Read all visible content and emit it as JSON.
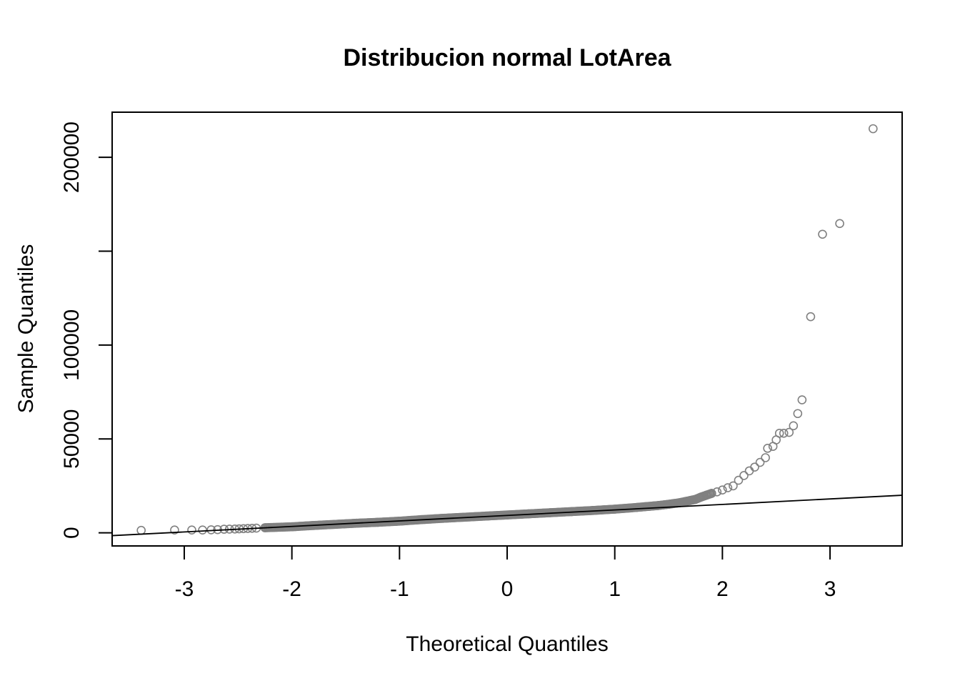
{
  "chart_data": {
    "type": "scatter",
    "title": "Distribucion normal LotArea",
    "xlabel": "Theoretical Quantiles",
    "ylabel": "Sample Quantiles",
    "xlim": [
      -3.67,
      3.67
    ],
    "ylim": [
      -7000,
      224000
    ],
    "x_ticks": [
      -3,
      -2,
      -1,
      0,
      1,
      2,
      3
    ],
    "x_tick_labels": [
      "-3",
      "-2",
      "-1",
      "0",
      "1",
      "2",
      "3"
    ],
    "y_ticks": [
      0,
      50000,
      100000,
      150000,
      200000
    ],
    "y_tick_labels": [
      "0",
      "50000",
      "100000",
      "",
      "200000"
    ],
    "grid": false,
    "point_color": "#808080",
    "line_color": "#000000",
    "reference_line": {
      "x": [
        -3.67,
        3.67
      ],
      "y": [
        -1500,
        20000
      ]
    },
    "series": [
      {
        "values": [
          [
            -3.4,
            1300
          ],
          [
            -3.09,
            1500
          ],
          [
            -2.93,
            1500
          ],
          [
            -2.83,
            1500
          ],
          [
            -2.75,
            1600
          ],
          [
            -2.69,
            1700
          ],
          [
            -2.63,
            1900
          ],
          [
            -2.58,
            1950
          ],
          [
            -2.53,
            2000
          ],
          [
            -2.49,
            2100
          ],
          [
            -2.45,
            2200
          ],
          [
            -2.41,
            2300
          ],
          [
            -2.37,
            2400
          ],
          [
            -2.33,
            2500
          ],
          [
            -2.25,
            2700
          ],
          [
            -2.2,
            2800
          ],
          [
            -2.1,
            3000
          ],
          [
            -2.0,
            3200
          ],
          [
            -1.8,
            3900
          ],
          [
            -1.6,
            4500
          ],
          [
            -1.4,
            5100
          ],
          [
            -1.2,
            5600
          ],
          [
            -1.0,
            6200
          ],
          [
            -0.8,
            7000
          ],
          [
            -0.6,
            7700
          ],
          [
            -0.4,
            8300
          ],
          [
            -0.2,
            8900
          ],
          [
            0.0,
            9500
          ],
          [
            0.2,
            10100
          ],
          [
            0.4,
            10700
          ],
          [
            0.6,
            11300
          ],
          [
            0.8,
            11900
          ],
          [
            1.0,
            12600
          ],
          [
            1.2,
            13500
          ],
          [
            1.4,
            14500
          ],
          [
            1.5,
            15200
          ],
          [
            1.6,
            16000
          ],
          [
            1.65,
            16600
          ],
          [
            1.7,
            17200
          ],
          [
            1.75,
            17800
          ],
          [
            1.8,
            19000
          ],
          [
            1.85,
            20000
          ],
          [
            1.9,
            21000
          ],
          [
            1.95,
            21800
          ],
          [
            2.0,
            22800
          ],
          [
            2.05,
            24000
          ],
          [
            2.1,
            25000
          ],
          [
            2.15,
            28000
          ],
          [
            2.2,
            30500
          ],
          [
            2.25,
            33000
          ],
          [
            2.3,
            35000
          ],
          [
            2.35,
            37500
          ],
          [
            2.4,
            40000
          ],
          [
            2.42,
            45000
          ],
          [
            2.47,
            46000
          ],
          [
            2.5,
            49500
          ],
          [
            2.53,
            53000
          ],
          [
            2.57,
            53000
          ],
          [
            2.62,
            53500
          ],
          [
            2.66,
            57000
          ],
          [
            2.7,
            63500
          ],
          [
            2.74,
            70800
          ],
          [
            2.82,
            115100
          ],
          [
            2.93,
            159000
          ],
          [
            3.09,
            164700
          ],
          [
            3.4,
            215200
          ]
        ]
      }
    ]
  }
}
